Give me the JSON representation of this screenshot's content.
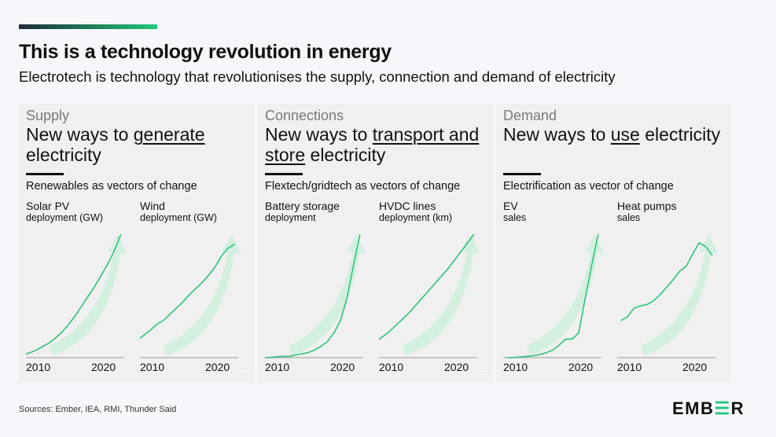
{
  "title": "This is a technology revolution in energy",
  "subtitle": "Electrotech is technology that revolutionises the supply, connection and demand of electricity",
  "colors": {
    "line": "#2fc27a",
    "arrow": "#c9efd9",
    "accent_bar_start": "#1e2a3a",
    "accent_bar_end": "#22c87a"
  },
  "panels": [
    {
      "category": "Supply",
      "heading_pre": "New ways to ",
      "heading_u": "generate",
      "heading_post": " electricity",
      "description": "Renewables as vectors of change",
      "charts": [
        {
          "title": "Solar PV",
          "subtitle": "deployment (GW)"
        },
        {
          "title": "Wind",
          "subtitle": "deployment (GW)"
        }
      ]
    },
    {
      "category": "Connections",
      "heading_pre": "New ways to ",
      "heading_u": "transport and store",
      "heading_post": " electricity",
      "description": "Flextech/gridtech as vectors of change",
      "charts": [
        {
          "title": "Battery storage",
          "subtitle": "deployment"
        },
        {
          "title": "HVDC lines",
          "subtitle": "deployment (km)"
        }
      ]
    },
    {
      "category": "Demand",
      "heading_pre": "New ways to ",
      "heading_u": "use",
      "heading_post": " electricity",
      "description": "Electrification as vector of change",
      "charts": [
        {
          "title": "EV",
          "subtitle": "sales"
        },
        {
          "title": "Heat pumps",
          "subtitle": "sales"
        }
      ]
    }
  ],
  "chart_data": [
    {
      "type": "line",
      "title": "Solar PV deployment (GW)",
      "x_tick_labels": [
        "2010",
        "2020"
      ],
      "y_scale": "relative (no axis printed)",
      "x": [
        2008,
        2009,
        2010,
        2011,
        2012,
        2013,
        2014,
        2015,
        2016,
        2017,
        2018,
        2019,
        2020,
        2021,
        2022,
        2023
      ],
      "values": [
        2,
        4,
        6,
        9,
        12,
        16,
        21,
        27,
        34,
        42,
        50,
        58,
        67,
        76,
        87,
        100
      ]
    },
    {
      "type": "line",
      "title": "Wind deployment (GW)",
      "x_tick_labels": [
        "2010",
        "2020"
      ],
      "y_scale": "relative (no axis printed)",
      "x": [
        2008,
        2009,
        2010,
        2011,
        2012,
        2013,
        2014,
        2015,
        2016,
        2017,
        2018,
        2019,
        2020,
        2021,
        2022,
        2023
      ],
      "values": [
        14,
        18,
        22,
        27,
        30,
        35,
        40,
        45,
        51,
        56,
        61,
        67,
        74,
        83,
        89,
        92
      ]
    },
    {
      "type": "line",
      "title": "Battery storage deployment",
      "x_tick_labels": [
        "2010",
        "2020"
      ],
      "y_scale": "relative (no axis printed)",
      "x": [
        2008,
        2009,
        2010,
        2011,
        2012,
        2013,
        2014,
        2015,
        2016,
        2017,
        2018,
        2019,
        2020,
        2021,
        2022,
        2023
      ],
      "values": [
        0,
        0,
        0.5,
        1,
        1,
        2,
        3,
        4,
        6,
        9,
        13,
        20,
        30,
        48,
        75,
        100
      ]
    },
    {
      "type": "line",
      "title": "HVDC lines deployment (km)",
      "x_tick_labels": [
        "2010",
        "2020"
      ],
      "y_scale": "relative (no axis printed)",
      "x": [
        2008,
        2009,
        2010,
        2011,
        2012,
        2013,
        2014,
        2015,
        2016,
        2017,
        2018,
        2019,
        2020,
        2021,
        2022,
        2023
      ],
      "values": [
        13,
        17,
        21,
        26,
        31,
        36,
        42,
        48,
        54,
        60,
        66,
        72,
        79,
        86,
        93,
        100
      ]
    },
    {
      "type": "line",
      "title": "EV sales",
      "x_tick_labels": [
        "2010",
        "2020"
      ],
      "y_scale": "relative (no axis printed)",
      "x": [
        2009,
        2010,
        2011,
        2012,
        2013,
        2014,
        2015,
        2016,
        2017,
        2018,
        2019,
        2020,
        2021,
        2022,
        2023
      ],
      "values": [
        0,
        0,
        0.5,
        1,
        1.5,
        2.5,
        4,
        6,
        10,
        15,
        15,
        20,
        48,
        75,
        100
      ]
    },
    {
      "type": "line",
      "title": "Heat pumps sales",
      "x_tick_labels": [
        "2010",
        "2020"
      ],
      "y_scale": "relative (no axis printed)",
      "x": [
        2009,
        2010,
        2011,
        2012,
        2013,
        2014,
        2015,
        2016,
        2017,
        2018,
        2019,
        2020,
        2021,
        2022,
        2023
      ],
      "values": [
        30,
        33,
        40,
        42,
        43,
        46,
        51,
        57,
        63,
        70,
        74,
        84,
        93,
        90,
        83
      ]
    }
  ],
  "footer": {
    "sources": "Sources: Ember, IEA, RMI, Thunder Said",
    "logo": "EMBER"
  }
}
